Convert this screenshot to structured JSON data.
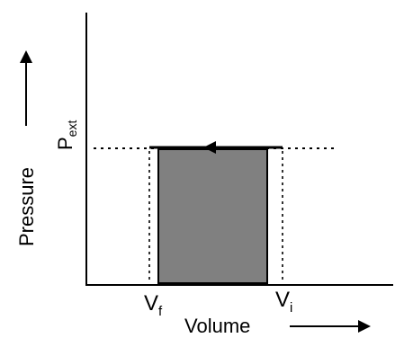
{
  "diagram": {
    "y_axis_label": "Pressure",
    "x_axis_label": "Volume",
    "pressure_label": {
      "main": "P",
      "sub": "ext"
    },
    "vf_label": {
      "main": "V",
      "sub": "f"
    },
    "vi_label": {
      "main": "V",
      "sub": "i"
    }
  },
  "colors": {
    "axis": "#000000",
    "work_area_fill": "#808080",
    "process_line": "#000000",
    "dashed_guides": "#000000"
  }
}
